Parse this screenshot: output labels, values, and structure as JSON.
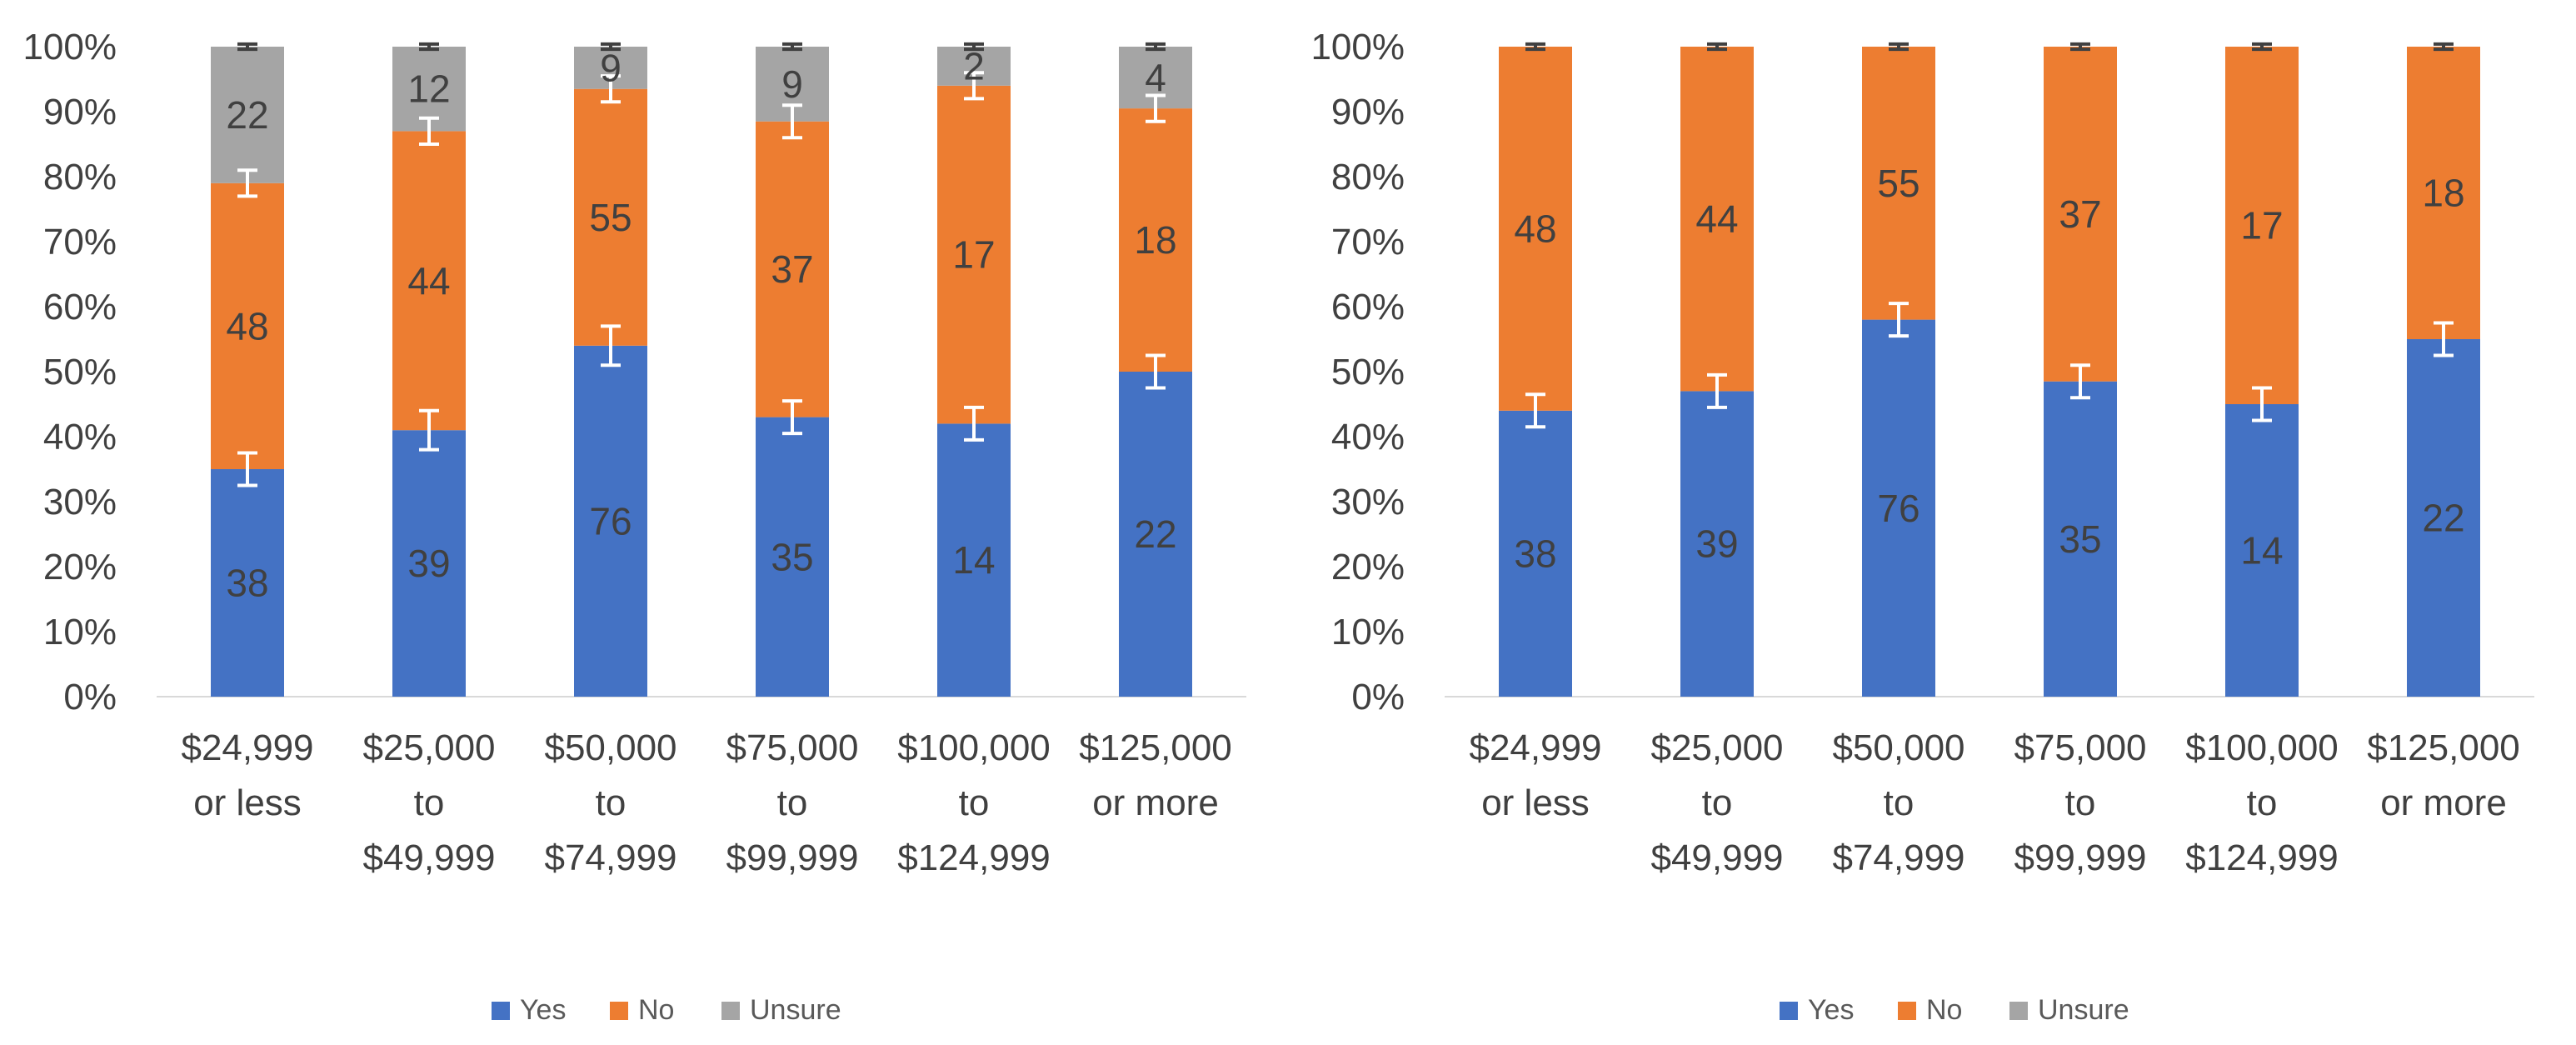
{
  "chart_data": [
    {
      "type": "bar",
      "stacked": true,
      "normalized": true,
      "title": "",
      "xlabel": "",
      "ylabel": "",
      "ylim": [
        0,
        100
      ],
      "yticks": [
        "0%",
        "10%",
        "20%",
        "30%",
        "40%",
        "50%",
        "60%",
        "70%",
        "80%",
        "90%",
        "100%"
      ],
      "categories": [
        [
          "$24,999",
          "or less"
        ],
        [
          "$25,000",
          "to",
          "$49,999"
        ],
        [
          "$50,000",
          "to",
          "$74,999"
        ],
        [
          "$75,000",
          "to",
          "$99,999"
        ],
        [
          "$100,000",
          "to",
          "$124,999"
        ],
        [
          "$125,000",
          "or more"
        ]
      ],
      "series": [
        {
          "name": "Yes",
          "color": "#4472C4",
          "values": [
            38,
            39,
            76,
            35,
            14,
            22
          ],
          "percent": [
            35,
            41,
            54,
            43,
            42,
            50
          ],
          "error_pct": [
            2.5,
            3,
            3,
            2.5,
            2.5,
            2.5
          ]
        },
        {
          "name": "No",
          "color": "#ED7D31",
          "values": [
            48,
            44,
            55,
            37,
            17,
            18
          ],
          "percent": [
            44,
            46,
            39.5,
            45.5,
            52,
            40.5
          ],
          "error_pct": [
            2,
            2,
            2,
            2.5,
            2,
            2
          ]
        },
        {
          "name": "Unsure",
          "color": "#A5A5A5",
          "values": [
            22,
            12,
            9,
            9,
            2,
            4
          ],
          "percent": [
            21,
            13,
            6.5,
            11.5,
            6,
            9.5
          ],
          "error_pct": [
            0.4,
            0.4,
            0.4,
            0.4,
            0.4,
            0.4
          ]
        }
      ],
      "legend": [
        "Yes",
        "No",
        "Unsure"
      ],
      "legend_position": "bottom"
    },
    {
      "type": "bar",
      "stacked": true,
      "normalized": true,
      "title": "",
      "xlabel": "",
      "ylabel": "",
      "ylim": [
        0,
        100
      ],
      "yticks": [
        "0%",
        "10%",
        "20%",
        "30%",
        "40%",
        "50%",
        "60%",
        "70%",
        "80%",
        "90%",
        "100%"
      ],
      "categories": [
        [
          "$24,999",
          "or less"
        ],
        [
          "$25,000",
          "to",
          "$49,999"
        ],
        [
          "$50,000",
          "to",
          "$74,999"
        ],
        [
          "$75,000",
          "to",
          "$99,999"
        ],
        [
          "$100,000",
          "to",
          "$124,999"
        ],
        [
          "$125,000",
          "or more"
        ]
      ],
      "series": [
        {
          "name": "Yes",
          "color": "#4472C4",
          "values": [
            38,
            39,
            76,
            35,
            14,
            22
          ],
          "percent": [
            44,
            47,
            58,
            48.5,
            45,
            55
          ],
          "error_pct": [
            2.5,
            2.5,
            2.5,
            2.5,
            2.5,
            2.5
          ]
        },
        {
          "name": "No",
          "color": "#ED7D31",
          "values": [
            48,
            44,
            55,
            37,
            17,
            18
          ],
          "percent": [
            56,
            53,
            42,
            51.5,
            55,
            45
          ],
          "error_pct": [
            0.4,
            0.4,
            0.4,
            0.4,
            0.4,
            0.4
          ]
        },
        {
          "name": "Unsure",
          "color": "#A5A5A5",
          "values": [
            null,
            null,
            null,
            null,
            null,
            null
          ],
          "percent": [
            0,
            0,
            0,
            0,
            0,
            0
          ],
          "error_pct": [
            0,
            0,
            0,
            0,
            0,
            0
          ]
        }
      ],
      "legend": [
        "Yes",
        "No",
        "Unsure"
      ],
      "legend_position": "bottom"
    }
  ]
}
